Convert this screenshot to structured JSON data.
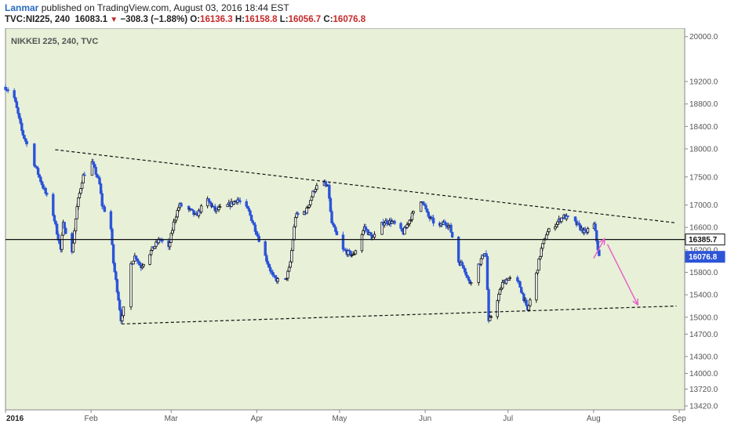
{
  "header": {
    "author": "Lanmar",
    "published_text": " published on TradingView.com, August 03, 2016 18:44 EST",
    "symbol": "TVC:NI225, 240",
    "last": "16083.1",
    "change": "−308.3 (−1.88%)",
    "open_label": "O:",
    "open": "16136.3",
    "high_label": "H:",
    "high": "16158.8",
    "low_label": "L:",
    "low": "16056.7",
    "close_label": "C:",
    "close": "16076.8"
  },
  "colors": {
    "plot_bg": "#e8f0d8",
    "up": "#ffffff",
    "down": "#2d55d8",
    "outline": "#111111",
    "arrow": "#e55cc8",
    "price_tag": "#2d55d8"
  },
  "chart_data": {
    "type": "candlestick",
    "plot_label": "NIKKEI 225, 240, TVC",
    "ylim": [
      13350,
      20150
    ],
    "yticks": [
      "20000.0",
      "19200.0",
      "18800.0",
      "18400.0",
      "18000.0",
      "17500.0",
      "17000.0",
      "16600.0",
      "16200.0",
      "15800.0",
      "15400.0",
      "15000.0",
      "14700.0",
      "14300.0",
      "14000.0",
      "13720.0",
      "13420.0"
    ],
    "xticks": [
      {
        "label": "2016",
        "date": "2016-01-01"
      },
      {
        "label": "Feb",
        "date": "2016-02-01"
      },
      {
        "label": "Mar",
        "date": "2016-03-01"
      },
      {
        "label": "Apr",
        "date": "2016-04-01"
      },
      {
        "label": "May",
        "date": "2016-05-01"
      },
      {
        "label": "Jun",
        "date": "2016-06-01"
      },
      {
        "label": "Jul",
        "date": "2016-07-01"
      },
      {
        "label": "Aug",
        "date": "2016-08-01"
      },
      {
        "label": "Sep",
        "date": "2016-09-01"
      }
    ],
    "price_path": [
      [
        "2016-01-01",
        19100
      ],
      [
        "2016-01-04",
        18950
      ],
      [
        "2016-01-07",
        18300
      ],
      [
        "2016-01-11",
        17800
      ],
      [
        "2016-01-14",
        17400
      ],
      [
        "2016-01-18",
        16900
      ],
      [
        "2016-01-21",
        16200
      ],
      [
        "2016-01-22",
        16700
      ],
      [
        "2016-01-25",
        16100
      ],
      [
        "2016-01-27",
        17000
      ],
      [
        "2016-01-29",
        17500
      ],
      [
        "2016-02-01",
        17800
      ],
      [
        "2016-02-04",
        17400
      ],
      [
        "2016-02-05",
        17000
      ],
      [
        "2016-02-08",
        16700
      ],
      [
        "2016-02-09",
        16000
      ],
      [
        "2016-02-11",
        15300
      ],
      [
        "2016-02-12",
        14900
      ],
      [
        "2016-02-15",
        15900
      ],
      [
        "2016-02-17",
        16100
      ],
      [
        "2016-02-19",
        15900
      ],
      [
        "2016-02-23",
        16200
      ],
      [
        "2016-02-26",
        16400
      ],
      [
        "2016-02-29",
        16200
      ],
      [
        "2016-03-02",
        16700
      ],
      [
        "2016-03-04",
        17000
      ],
      [
        "2016-03-08",
        16900
      ],
      [
        "2016-03-10",
        16800
      ],
      [
        "2016-03-14",
        17100
      ],
      [
        "2016-03-17",
        16900
      ],
      [
        "2016-03-22",
        17000
      ],
      [
        "2016-03-25",
        17100
      ],
      [
        "2016-03-29",
        16900
      ],
      [
        "2016-04-01",
        16500
      ],
      [
        "2016-04-04",
        16100
      ],
      [
        "2016-04-07",
        15700
      ],
      [
        "2016-04-11",
        15600
      ],
      [
        "2016-04-13",
        15900
      ],
      [
        "2016-04-15",
        16800
      ],
      [
        "2016-04-19",
        16900
      ],
      [
        "2016-04-22",
        17300
      ],
      [
        "2016-04-25",
        17400
      ],
      [
        "2016-04-27",
        17300
      ],
      [
        "2016-04-28",
        16700
      ],
      [
        "2016-05-02",
        16200
      ],
      [
        "2016-05-06",
        16100
      ],
      [
        "2016-05-10",
        16600
      ],
      [
        "2016-05-13",
        16400
      ],
      [
        "2016-05-17",
        16700
      ],
      [
        "2016-05-20",
        16700
      ],
      [
        "2016-05-24",
        16500
      ],
      [
        "2016-05-27",
        16800
      ],
      [
        "2016-05-31",
        17100
      ],
      [
        "2016-06-02",
        16800
      ],
      [
        "2016-06-06",
        16600
      ],
      [
        "2016-06-08",
        16700
      ],
      [
        "2016-06-10",
        16600
      ],
      [
        "2016-06-13",
        16000
      ],
      [
        "2016-06-15",
        15900
      ],
      [
        "2016-06-17",
        15600
      ],
      [
        "2016-06-20",
        15900
      ],
      [
        "2016-06-22",
        16100
      ],
      [
        "2016-06-23",
        16200
      ],
      [
        "2016-06-24",
        14900
      ],
      [
        "2016-06-27",
        15300
      ],
      [
        "2016-06-29",
        15600
      ],
      [
        "2016-07-01",
        15700
      ],
      [
        "2016-07-05",
        15600
      ],
      [
        "2016-07-07",
        15300
      ],
      [
        "2016-07-08",
        15100
      ],
      [
        "2016-07-11",
        15700
      ],
      [
        "2016-07-13",
        16200
      ],
      [
        "2016-07-15",
        16500
      ],
      [
        "2016-07-19",
        16700
      ],
      [
        "2016-07-21",
        16800
      ],
      [
        "2016-07-25",
        16700
      ],
      [
        "2016-07-27",
        16600
      ],
      [
        "2016-07-29",
        16500
      ],
      [
        "2016-08-01",
        16700
      ],
      [
        "2016-08-02",
        16400
      ],
      [
        "2016-08-03",
        16077
      ]
    ],
    "lines": [
      {
        "name": "upper-trendline",
        "style": "dashed",
        "from": [
          "2016-01-19",
          17985
        ],
        "to": [
          "2016-08-31",
          16680
        ]
      },
      {
        "name": "lower-trendline",
        "style": "dashed",
        "from": [
          "2016-02-12",
          14880
        ],
        "to": [
          "2016-08-31",
          15200
        ]
      },
      {
        "name": "horizontal-level",
        "style": "solid",
        "from": [
          "2016-01-01",
          16385.7
        ],
        "to": [
          "2016-09-03",
          16385.7
        ]
      }
    ],
    "arrows": [
      {
        "from": [
          "2016-08-01",
          16050
        ],
        "to": [
          "2016-08-05",
          16400
        ]
      },
      {
        "from": [
          "2016-08-06",
          16300
        ],
        "to": [
          "2016-08-17",
          15220
        ]
      }
    ],
    "price_tags": [
      {
        "value": "16385.7",
        "price": 16385.7,
        "style": "outline"
      },
      {
        "value": "16076.8",
        "price": 16076.8,
        "style": "filled"
      }
    ]
  }
}
